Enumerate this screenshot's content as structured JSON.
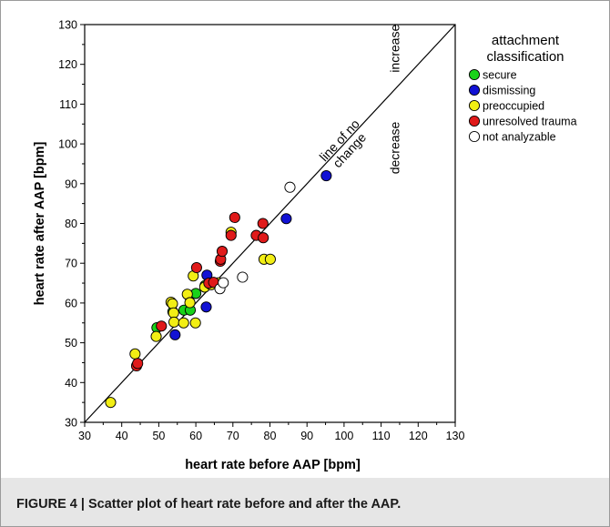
{
  "caption": "FIGURE 4 | Scatter plot of heart rate before and after the AAP.",
  "chart_data": {
    "type": "scatter",
    "xlabel": "heart rate before AAP [bpm]",
    "ylabel": "heart rate after AAP [bpm]",
    "xlim": [
      30,
      130
    ],
    "ylim": [
      30,
      130
    ],
    "xticks": [
      30,
      40,
      50,
      60,
      70,
      80,
      90,
      100,
      110,
      120,
      130
    ],
    "yticks": [
      30,
      40,
      50,
      60,
      70,
      80,
      90,
      100,
      110,
      120,
      130
    ],
    "grid": false,
    "legend_position": "top-right",
    "legend_title": "attachment classification",
    "reference_line": {
      "label": "line of no change",
      "x": [
        30,
        130
      ],
      "y": [
        30,
        130
      ],
      "above_label": "increase",
      "below_label": "decrease"
    },
    "series": [
      {
        "name": "secure",
        "color": "#19d219",
        "points": [
          [
            49.5,
            53.8
          ],
          [
            53.8,
            57.8
          ],
          [
            56.8,
            58.2
          ],
          [
            58.5,
            58.2
          ],
          [
            60,
            62.4
          ],
          [
            62.5,
            64.4
          ]
        ]
      },
      {
        "name": "dismissing",
        "color": "#1212d4",
        "points": [
          [
            54.4,
            52
          ],
          [
            62.8,
            59
          ],
          [
            63,
            67
          ],
          [
            84.4,
            81.2
          ],
          [
            95.2,
            92
          ]
        ]
      },
      {
        "name": "preoccupied",
        "color": "#f2ee14",
        "points": [
          [
            37,
            35
          ],
          [
            43.6,
            47.2
          ],
          [
            49.3,
            51.6
          ],
          [
            53.3,
            60.2
          ],
          [
            53.7,
            59.8
          ],
          [
            54,
            57.5
          ],
          [
            54.1,
            55.2
          ],
          [
            56.7,
            55
          ],
          [
            57.7,
            62.2
          ],
          [
            58.4,
            60.1
          ],
          [
            59.3,
            66.8
          ],
          [
            59.9,
            55
          ],
          [
            62.4,
            64
          ],
          [
            64.1,
            64.6
          ],
          [
            66.1,
            65.1
          ],
          [
            69.5,
            77.8
          ],
          [
            78.4,
            71
          ],
          [
            80.1,
            71
          ]
        ]
      },
      {
        "name": "unresolved trauma",
        "color": "#e01a1a",
        "points": [
          [
            44,
            44.2
          ],
          [
            44.3,
            44.8
          ],
          [
            50.7,
            54.2
          ],
          [
            60.2,
            68.9
          ],
          [
            63.5,
            65
          ],
          [
            64.8,
            65.2
          ],
          [
            66.6,
            70.5
          ],
          [
            66.7,
            71
          ],
          [
            67.1,
            73
          ],
          [
            69.5,
            77
          ],
          [
            70.5,
            81.5
          ],
          [
            76.3,
            77
          ],
          [
            78.1,
            80
          ],
          [
            78.2,
            76.4
          ]
        ]
      },
      {
        "name": "not analyzable",
        "color": "#ffffff",
        "points": [
          [
            66.5,
            63.6
          ],
          [
            67.4,
            65.1
          ],
          [
            72.6,
            66.5
          ],
          [
            85.4,
            89.1
          ]
        ]
      }
    ]
  }
}
